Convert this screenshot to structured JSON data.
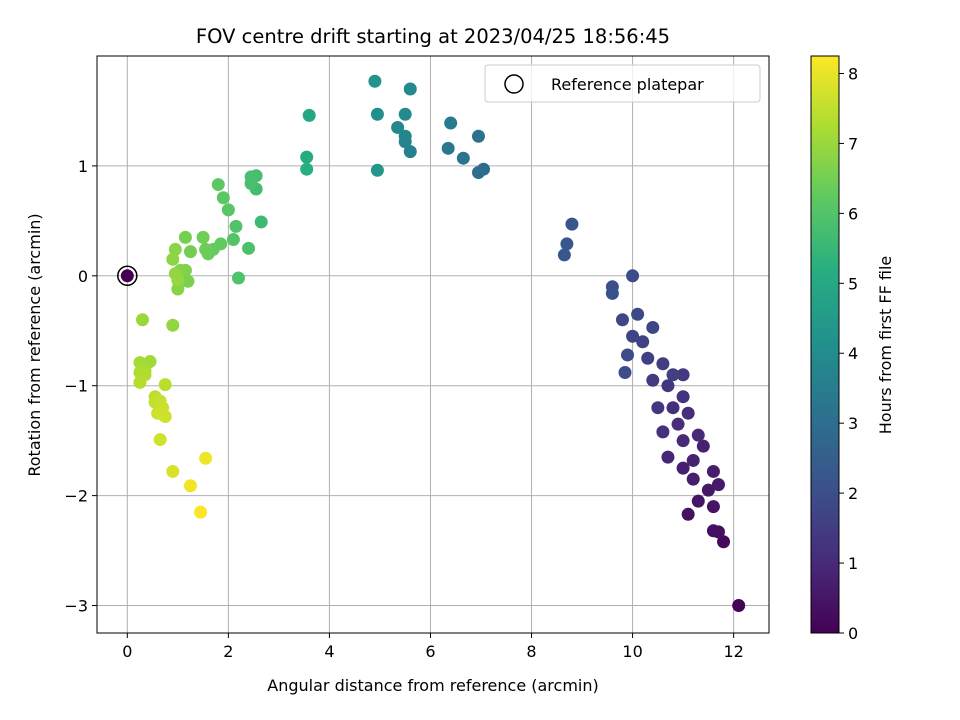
{
  "chart_data": {
    "type": "scatter",
    "title": "FOV centre drift starting at 2023/04/25 18:56:45",
    "xlabel": "Angular distance from reference (arcmin)",
    "ylabel": "Rotation from reference (arcmin)",
    "xlim": [
      -0.6,
      12.7
    ],
    "ylim": [
      -3.25,
      2.0
    ],
    "xticks": [
      0,
      2,
      4,
      6,
      8,
      10,
      12
    ],
    "yticks": [
      -3,
      -2,
      -1,
      0,
      1
    ],
    "grid": true,
    "legend": {
      "placement": "top-right",
      "entries": [
        "Reference platepar"
      ]
    },
    "colorbar": {
      "label": "Hours from first FF file",
      "range": [
        0,
        8.25
      ],
      "ticks": [
        0,
        1,
        2,
        3,
        4,
        5,
        6,
        7,
        8
      ],
      "colormap": "viridis"
    },
    "reference_point": {
      "x": 0,
      "y": 0
    },
    "points": [
      {
        "x": 12.1,
        "y": -3.0,
        "t": 0.05
      },
      {
        "x": 11.8,
        "y": -2.42,
        "t": 0.2
      },
      {
        "x": 11.7,
        "y": -2.33,
        "t": 0.3
      },
      {
        "x": 11.6,
        "y": -2.32,
        "t": 0.35
      },
      {
        "x": 11.1,
        "y": -2.17,
        "t": 0.4
      },
      {
        "x": 11.6,
        "y": -2.1,
        "t": 0.45
      },
      {
        "x": 11.3,
        "y": -2.05,
        "t": 0.5
      },
      {
        "x": 11.5,
        "y": -1.95,
        "t": 0.55
      },
      {
        "x": 11.7,
        "y": -1.9,
        "t": 0.6
      },
      {
        "x": 11.6,
        "y": -1.78,
        "t": 0.65
      },
      {
        "x": 11.2,
        "y": -1.85,
        "t": 0.7
      },
      {
        "x": 11.0,
        "y": -1.75,
        "t": 0.75
      },
      {
        "x": 11.4,
        "y": -1.55,
        "t": 0.8
      },
      {
        "x": 11.2,
        "y": -1.68,
        "t": 0.85
      },
      {
        "x": 10.7,
        "y": -1.65,
        "t": 0.9
      },
      {
        "x": 11.3,
        "y": -1.45,
        "t": 0.95
      },
      {
        "x": 11.0,
        "y": -1.5,
        "t": 1.0
      },
      {
        "x": 10.9,
        "y": -1.35,
        "t": 1.05
      },
      {
        "x": 11.1,
        "y": -1.25,
        "t": 1.1
      },
      {
        "x": 10.8,
        "y": -1.2,
        "t": 1.15
      },
      {
        "x": 10.6,
        "y": -1.42,
        "t": 1.2
      },
      {
        "x": 11.0,
        "y": -1.1,
        "t": 1.25
      },
      {
        "x": 10.5,
        "y": -1.2,
        "t": 1.3
      },
      {
        "x": 10.7,
        "y": -1.0,
        "t": 1.35
      },
      {
        "x": 11.0,
        "y": -0.9,
        "t": 1.4
      },
      {
        "x": 10.4,
        "y": -0.95,
        "t": 1.45
      },
      {
        "x": 10.6,
        "y": -0.8,
        "t": 1.5
      },
      {
        "x": 10.3,
        "y": -0.75,
        "t": 1.55
      },
      {
        "x": 10.8,
        "y": -0.9,
        "t": 1.6
      },
      {
        "x": 10.2,
        "y": -0.6,
        "t": 1.65
      },
      {
        "x": 10.0,
        "y": -0.55,
        "t": 1.7
      },
      {
        "x": 10.4,
        "y": -0.47,
        "t": 1.75
      },
      {
        "x": 9.8,
        "y": -0.4,
        "t": 1.8
      },
      {
        "x": 10.1,
        "y": -0.35,
        "t": 1.85
      },
      {
        "x": 9.9,
        "y": -0.72,
        "t": 1.9
      },
      {
        "x": 9.85,
        "y": -0.88,
        "t": 1.95
      },
      {
        "x": 10.0,
        "y": 0.0,
        "t": 1.9
      },
      {
        "x": 9.6,
        "y": -0.1,
        "t": 2.0
      },
      {
        "x": 9.6,
        "y": -0.16,
        "t": 2.1
      },
      {
        "x": 8.8,
        "y": 0.47,
        "t": 2.2
      },
      {
        "x": 8.7,
        "y": 0.29,
        "t": 2.25
      },
      {
        "x": 8.65,
        "y": 0.19,
        "t": 2.3
      },
      {
        "x": 7.05,
        "y": 0.97,
        "t": 2.9
      },
      {
        "x": 6.95,
        "y": 0.94,
        "t": 3.0
      },
      {
        "x": 6.95,
        "y": 1.27,
        "t": 3.1
      },
      {
        "x": 6.65,
        "y": 1.07,
        "t": 3.2
      },
      {
        "x": 6.35,
        "y": 1.16,
        "t": 3.3
      },
      {
        "x": 6.4,
        "y": 1.39,
        "t": 3.4
      },
      {
        "x": 5.6,
        "y": 1.13,
        "t": 3.6
      },
      {
        "x": 5.5,
        "y": 1.22,
        "t": 3.7
      },
      {
        "x": 5.5,
        "y": 1.27,
        "t": 3.75
      },
      {
        "x": 5.35,
        "y": 1.35,
        "t": 3.85
      },
      {
        "x": 5.5,
        "y": 1.47,
        "t": 3.95
      },
      {
        "x": 5.6,
        "y": 1.7,
        "t": 3.9
      },
      {
        "x": 4.95,
        "y": 1.47,
        "t": 4.1
      },
      {
        "x": 4.9,
        "y": 1.77,
        "t": 4.25
      },
      {
        "x": 4.95,
        "y": 0.96,
        "t": 4.35
      },
      {
        "x": 3.6,
        "y": 1.46,
        "t": 4.95
      },
      {
        "x": 3.55,
        "y": 1.08,
        "t": 5.1
      },
      {
        "x": 3.55,
        "y": 0.97,
        "t": 5.2
      },
      {
        "x": 2.65,
        "y": 0.49,
        "t": 5.6
      },
      {
        "x": 2.55,
        "y": 0.79,
        "t": 5.7
      },
      {
        "x": 2.55,
        "y": 0.91,
        "t": 5.75
      },
      {
        "x": 2.45,
        "y": 0.9,
        "t": 5.8
      },
      {
        "x": 2.45,
        "y": 0.84,
        "t": 5.85
      },
      {
        "x": 2.4,
        "y": 0.25,
        "t": 5.9
      },
      {
        "x": 2.2,
        "y": -0.02,
        "t": 5.95
      },
      {
        "x": 2.15,
        "y": 0.45,
        "t": 6.0
      },
      {
        "x": 2.1,
        "y": 0.33,
        "t": 6.05
      },
      {
        "x": 2.0,
        "y": 0.6,
        "t": 6.1
      },
      {
        "x": 1.9,
        "y": 0.71,
        "t": 6.15
      },
      {
        "x": 1.8,
        "y": 0.83,
        "t": 6.2
      },
      {
        "x": 1.85,
        "y": 0.29,
        "t": 6.25
      },
      {
        "x": 1.7,
        "y": 0.24,
        "t": 6.3
      },
      {
        "x": 1.6,
        "y": 0.2,
        "t": 6.35
      },
      {
        "x": 1.55,
        "y": 0.24,
        "t": 6.4
      },
      {
        "x": 1.5,
        "y": 0.35,
        "t": 6.45
      },
      {
        "x": 1.25,
        "y": 0.22,
        "t": 6.5
      },
      {
        "x": 1.15,
        "y": 0.35,
        "t": 6.55
      },
      {
        "x": 1.2,
        "y": -0.05,
        "t": 6.6
      },
      {
        "x": 1.15,
        "y": 0.05,
        "t": 6.65
      },
      {
        "x": 1.05,
        "y": 0.05,
        "t": 6.7
      },
      {
        "x": 1.0,
        "y": -0.12,
        "t": 6.75
      },
      {
        "x": 0.95,
        "y": 0.24,
        "t": 6.8
      },
      {
        "x": 0.9,
        "y": 0.15,
        "t": 6.85
      },
      {
        "x": 0.95,
        "y": 0.02,
        "t": 6.9
      },
      {
        "x": 1.0,
        "y": -0.04,
        "t": 6.95
      },
      {
        "x": 0.9,
        "y": -0.45,
        "t": 6.9
      },
      {
        "x": 0.3,
        "y": -0.4,
        "t": 7.0
      },
      {
        "x": 0.45,
        "y": -0.78,
        "t": 7.1
      },
      {
        "x": 0.25,
        "y": -0.79,
        "t": 7.15
      },
      {
        "x": 0.35,
        "y": -0.86,
        "t": 7.2
      },
      {
        "x": 0.25,
        "y": -0.88,
        "t": 7.25
      },
      {
        "x": 0.35,
        "y": -0.9,
        "t": 7.3
      },
      {
        "x": 0.25,
        "y": -0.97,
        "t": 7.35
      },
      {
        "x": 0.75,
        "y": -0.99,
        "t": 7.4
      },
      {
        "x": 0.55,
        "y": -1.1,
        "t": 7.45
      },
      {
        "x": 0.55,
        "y": -1.15,
        "t": 7.5
      },
      {
        "x": 0.65,
        "y": -1.14,
        "t": 7.55
      },
      {
        "x": 0.7,
        "y": -1.2,
        "t": 7.6
      },
      {
        "x": 0.6,
        "y": -1.25,
        "t": 7.6
      },
      {
        "x": 0.75,
        "y": -1.28,
        "t": 7.65
      },
      {
        "x": 0.65,
        "y": -1.25,
        "t": 7.65
      },
      {
        "x": 0.65,
        "y": -1.49,
        "t": 7.7
      },
      {
        "x": 0.9,
        "y": -1.78,
        "t": 7.8
      },
      {
        "x": 1.55,
        "y": -1.66,
        "t": 8.05
      },
      {
        "x": 1.25,
        "y": -1.91,
        "t": 8.1
      },
      {
        "x": 1.45,
        "y": -2.15,
        "t": 8.2
      }
    ]
  }
}
